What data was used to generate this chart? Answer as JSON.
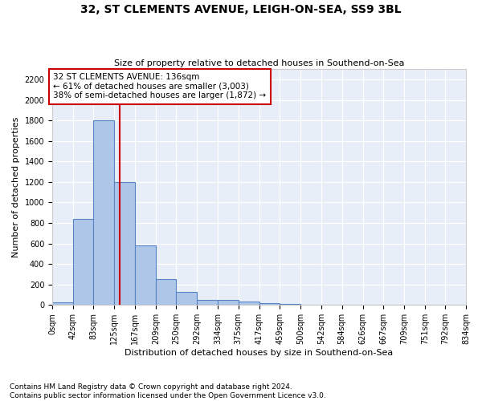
{
  "title": "32, ST CLEMENTS AVENUE, LEIGH-ON-SEA, SS9 3BL",
  "subtitle": "Size of property relative to detached houses in Southend-on-Sea",
  "xlabel": "Distribution of detached houses by size in Southend-on-Sea",
  "ylabel": "Number of detached properties",
  "footer1": "Contains HM Land Registry data © Crown copyright and database right 2024.",
  "footer2": "Contains public sector information licensed under the Open Government Licence v3.0.",
  "annotation_line1": "32 ST CLEMENTS AVENUE: 136sqm",
  "annotation_line2": "← 61% of detached houses are smaller (3,003)",
  "annotation_line3": "38% of semi-detached houses are larger (1,872) →",
  "bar_edges": [
    0,
    42,
    83,
    125,
    167,
    209,
    250,
    292,
    334,
    375,
    417,
    459,
    500,
    542,
    584,
    626,
    667,
    709,
    751,
    792,
    834
  ],
  "bar_heights": [
    28,
    840,
    1800,
    1200,
    580,
    250,
    130,
    50,
    50,
    35,
    20,
    10,
    2,
    0,
    0,
    0,
    0,
    0,
    0,
    0
  ],
  "bar_color": "#aec6e8",
  "bar_edge_color": "#5585c5",
  "background_color": "#e8eef7",
  "red_line_x": 136,
  "ylim": [
    0,
    2300
  ],
  "yticks": [
    0,
    200,
    400,
    600,
    800,
    1000,
    1200,
    1400,
    1600,
    1800,
    2000,
    2200
  ],
  "annotation_box_color": "#cc0000",
  "grid_color": "#ffffff",
  "title_fontsize": 10,
  "subtitle_fontsize": 8,
  "ylabel_fontsize": 8,
  "xlabel_fontsize": 8,
  "tick_fontsize": 7,
  "ann_fontsize": 7.5,
  "footer_fontsize": 6.5
}
